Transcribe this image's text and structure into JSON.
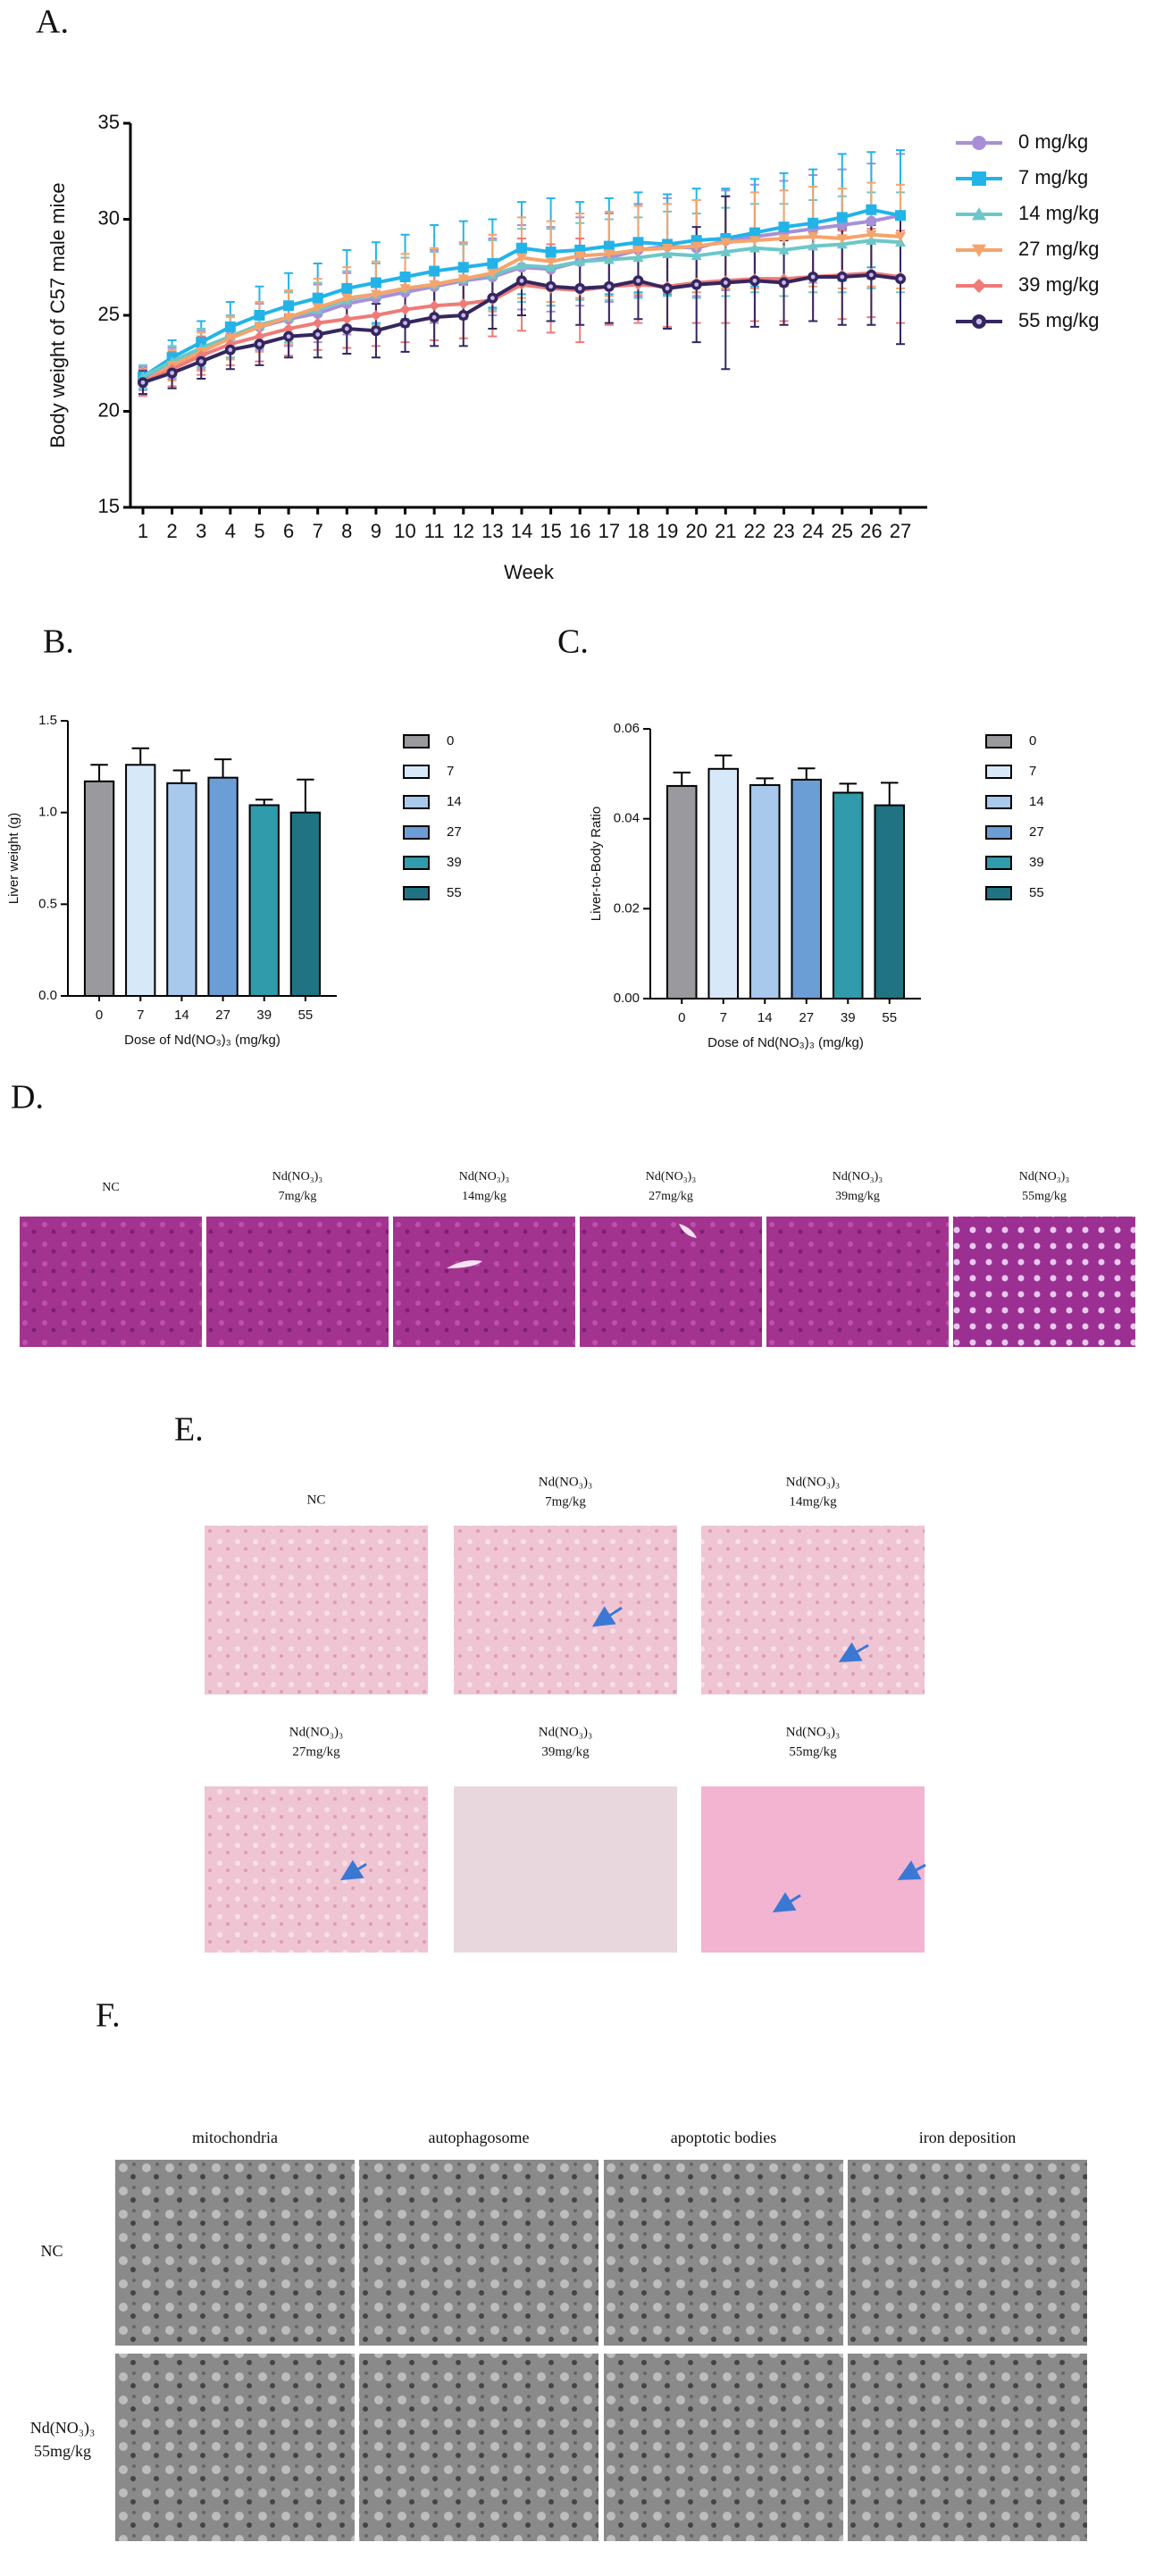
{
  "chart_data": [
    {
      "type": "line",
      "panel_label": "A.",
      "y_label": "Body weight of C57 male mice",
      "x_label": "Week",
      "categories": [
        "1",
        "2",
        "3",
        "4",
        "5",
        "6",
        "7",
        "8",
        "9",
        "10",
        "11",
        "12",
        "13",
        "14",
        "15",
        "16",
        "17",
        "18",
        "19",
        "20",
        "21",
        "22",
        "23",
        "24",
        "25",
        "26",
        "27"
      ],
      "ylim": [
        15,
        35
      ],
      "yticks": [
        15,
        20,
        25,
        30,
        35
      ],
      "legend": "right",
      "series": [
        {
          "name": "0 mg/kg",
          "color": "#a78fd8",
          "marker": "circle",
          "values": [
            21.7,
            22.5,
            23.2,
            23.9,
            24.4,
            24.8,
            25.1,
            25.6,
            25.9,
            26.2,
            26.5,
            26.8,
            27.0,
            27.5,
            27.4,
            27.8,
            28.0,
            28.4,
            28.6,
            28.5,
            28.9,
            29.1,
            29.3,
            29.5,
            29.7,
            29.9,
            30.2
          ],
          "errors": [
            0.6,
            0.8,
            1.0,
            1.1,
            1.2,
            1.4,
            1.5,
            1.6,
            1.8,
            1.8,
            1.9,
            2.0,
            2.0,
            2.2,
            2.2,
            2.3,
            2.3,
            2.4,
            2.5,
            2.5,
            2.6,
            2.7,
            2.7,
            2.8,
            2.9,
            3.0,
            3.2
          ]
        },
        {
          "name": "7 mg/kg",
          "color": "#22b4e8",
          "marker": "square",
          "values": [
            21.8,
            22.8,
            23.6,
            24.4,
            25.0,
            25.5,
            25.9,
            26.4,
            26.7,
            27.0,
            27.3,
            27.5,
            27.7,
            28.5,
            28.3,
            28.4,
            28.6,
            28.8,
            28.7,
            28.9,
            29.0,
            29.3,
            29.6,
            29.8,
            30.1,
            30.5,
            30.2
          ],
          "errors": [
            0.6,
            0.9,
            1.1,
            1.3,
            1.5,
            1.7,
            1.8,
            2.0,
            2.1,
            2.2,
            2.4,
            2.4,
            2.3,
            2.4,
            2.8,
            2.5,
            2.5,
            2.6,
            2.6,
            2.7,
            2.6,
            2.8,
            2.8,
            2.8,
            3.3,
            3.0,
            3.4
          ]
        },
        {
          "name": "14 mg/kg",
          "color": "#6cc7c8",
          "marker": "triangle",
          "values": [
            21.8,
            22.6,
            23.3,
            23.9,
            24.5,
            24.9,
            25.3,
            25.8,
            26.1,
            26.4,
            26.6,
            26.9,
            27.1,
            27.6,
            27.5,
            27.8,
            27.9,
            28.0,
            28.2,
            28.1,
            28.3,
            28.5,
            28.4,
            28.6,
            28.7,
            28.9,
            28.8
          ],
          "errors": [
            0.6,
            0.8,
            1.0,
            1.1,
            1.2,
            1.3,
            1.4,
            1.5,
            1.6,
            1.6,
            1.7,
            1.8,
            1.8,
            1.9,
            2.0,
            2.0,
            2.1,
            2.1,
            2.2,
            2.2,
            2.3,
            2.3,
            2.4,
            2.4,
            2.5,
            2.5,
            2.6
          ]
        },
        {
          "name": "27 mg/kg",
          "color": "#f5a46c",
          "marker": "triangle-down",
          "values": [
            21.5,
            22.4,
            23.1,
            23.8,
            24.4,
            24.9,
            25.4,
            25.9,
            26.1,
            26.4,
            26.6,
            26.9,
            27.2,
            28.0,
            27.8,
            28.1,
            28.2,
            28.4,
            28.5,
            28.6,
            28.8,
            28.9,
            29.0,
            29.1,
            29.0,
            29.2,
            29.1
          ],
          "errors": [
            0.6,
            0.8,
            1.0,
            1.1,
            1.3,
            1.4,
            1.5,
            1.6,
            1.7,
            1.8,
            1.9,
            1.9,
            2.0,
            2.1,
            2.1,
            2.2,
            2.2,
            2.3,
            2.3,
            2.4,
            2.4,
            2.5,
            2.5,
            2.6,
            2.6,
            2.7,
            2.7
          ]
        },
        {
          "name": "39 mg/kg",
          "color": "#ee7b78",
          "marker": "diamond",
          "values": [
            21.5,
            22.2,
            22.9,
            23.5,
            23.9,
            24.3,
            24.6,
            24.8,
            25.0,
            25.3,
            25.5,
            25.6,
            25.8,
            26.6,
            26.4,
            26.3,
            26.5,
            26.6,
            26.5,
            26.7,
            26.8,
            26.9,
            26.9,
            27.0,
            27.1,
            27.2,
            27.0
          ],
          "errors": [
            0.7,
            0.9,
            1.0,
            1.1,
            1.3,
            1.4,
            1.4,
            1.5,
            1.6,
            1.7,
            1.8,
            1.8,
            1.9,
            2.4,
            2.3,
            2.7,
            2.0,
            2.0,
            2.1,
            2.1,
            2.2,
            2.2,
            2.2,
            2.3,
            2.3,
            2.3,
            2.4
          ]
        },
        {
          "name": "55 mg/kg",
          "color": "#35265f",
          "marker": "circle-dot",
          "values": [
            21.5,
            22.0,
            22.6,
            23.2,
            23.5,
            23.9,
            24.0,
            24.3,
            24.2,
            24.6,
            24.9,
            25.0,
            25.9,
            26.8,
            26.5,
            26.4,
            26.5,
            26.8,
            26.4,
            26.6,
            26.7,
            26.8,
            26.7,
            27.0,
            27.0,
            27.1,
            26.9
          ],
          "errors": [
            0.6,
            0.8,
            0.9,
            1.0,
            1.1,
            1.1,
            1.2,
            1.3,
            1.4,
            1.5,
            1.5,
            1.6,
            1.6,
            1.8,
            1.8,
            1.9,
            1.9,
            2.0,
            2.1,
            3.0,
            4.5,
            2.4,
            2.2,
            2.3,
            2.5,
            2.6,
            3.4
          ]
        }
      ]
    },
    {
      "type": "bar",
      "panel_label": "B.",
      "y_label": "Liver weight (g)",
      "x_label": "Dose of Nd(NO₃)₃ (mg/kg)",
      "categories": [
        "0",
        "7",
        "14",
        "27",
        "39",
        "55"
      ],
      "values": [
        1.17,
        1.26,
        1.16,
        1.19,
        1.04,
        1.0
      ],
      "errors": [
        0.09,
        0.09,
        0.07,
        0.1,
        0.03,
        0.18
      ],
      "colors": [
        "#9a9a9e",
        "#d7e8f8",
        "#a8c8ec",
        "#6c9ed6",
        "#2f9bab",
        "#1f7383"
      ],
      "ylim": [
        0,
        1.5
      ],
      "yticks": [
        {
          "value": 0,
          "label": "0.0"
        },
        0.5,
        {
          "value": 1,
          "label": "1.0"
        },
        1.5
      ],
      "legend": "right"
    },
    {
      "type": "bar",
      "panel_label": "C.",
      "y_label": "Liver-to-Body Ratio",
      "x_label": "Dose of Nd(NO₃)₃ (mg/kg)",
      "categories": [
        "0",
        "7",
        "14",
        "27",
        "39",
        "55"
      ],
      "values": [
        0.0473,
        0.0511,
        0.0475,
        0.0487,
        0.0458,
        0.043
      ],
      "errors": [
        0.003,
        0.003,
        0.0015,
        0.0025,
        0.002,
        0.005
      ],
      "colors": [
        "#9a9a9e",
        "#d7e8f8",
        "#a8c8ec",
        "#6c9ed6",
        "#2f9bab",
        "#1f7383"
      ],
      "ylim": [
        0,
        0.06
      ],
      "yticks": [
        {
          "value": 0,
          "label": "0.00"
        },
        {
          "value": 0.02,
          "label": "0.02"
        },
        {
          "value": 0.04,
          "label": "0.04"
        },
        {
          "value": 0.06,
          "label": "0.06"
        }
      ],
      "legend": "right"
    }
  ],
  "panels": {
    "d": {
      "label": "D.",
      "captions": [
        [
          "NC"
        ],
        [
          "Nd(NO₃)₃",
          "7mg/kg"
        ],
        [
          "Nd(NO₃)₃",
          "14mg/kg"
        ],
        [
          "Nd(NO₃)₃",
          "27mg/kg"
        ],
        [
          "Nd(NO₃)₃",
          "39mg/kg"
        ],
        [
          "Nd(NO₃)₃",
          "55mg/kg"
        ]
      ]
    },
    "e": {
      "label": "E.",
      "captions": [
        [
          "NC"
        ],
        [
          "Nd(NO₃)₃",
          "7mg/kg"
        ],
        [
          "Nd(NO₃)₃",
          "14mg/kg"
        ],
        [
          "Nd(NO₃)₃",
          "27mg/kg"
        ],
        [
          "Nd(NO₃)₃",
          "39mg/kg"
        ],
        [
          "Nd(NO₃)₃",
          "55mg/kg"
        ]
      ]
    },
    "f": {
      "label": "F.",
      "columns": [
        "mitochondria",
        "autophagosome",
        "apoptotic bodies",
        "iron deposition"
      ],
      "rows": [
        [
          "NC"
        ],
        [
          "Nd(NO₃)₃",
          "55mg/kg"
        ]
      ]
    }
  }
}
